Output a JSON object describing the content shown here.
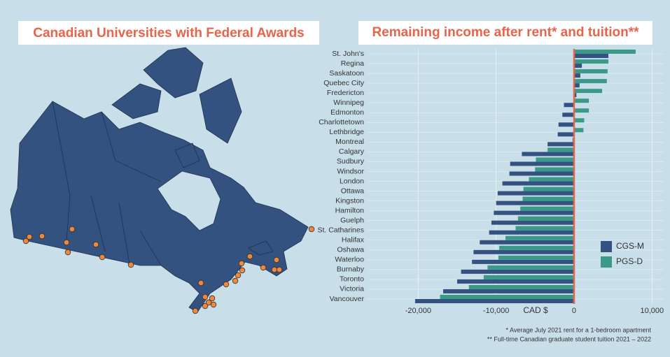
{
  "map": {
    "title": "Canadian Universities with Federal Awards"
  },
  "chart_data": {
    "type": "bar",
    "orientation": "horizontal",
    "title": "Remaining income after rent* and tuition**",
    "xlabel": "CAD $",
    "notes": [
      "* Average July 2021 rent for a 1-bedroom apartment",
      "** Full-time Canadian graduate student tuition 2021 – 2022"
    ],
    "categories": [
      "St. John's",
      "Regina",
      "Saskatoon",
      "Quebec City",
      "Fredericton",
      "Winnipeg",
      "Edmonton",
      "Charlottetown",
      "Lethbridge",
      "Montreal",
      "Calgary",
      "Sudbury",
      "Windsor",
      "London",
      "Ottawa",
      "Kingston",
      "Hamilton",
      "Guelph",
      "St. Catharines",
      "Halifax",
      "Oshawa",
      "Waterloo",
      "Burnaby",
      "Toronto",
      "Victoria",
      "Vancouver"
    ],
    "series": [
      {
        "name": "CGS-M",
        "color": "#34527f",
        "values": [
          4400,
          1000,
          800,
          700,
          300,
          -1300,
          -1500,
          -2000,
          -2100,
          -3400,
          -6700,
          -8200,
          -8300,
          -9200,
          -9800,
          -10000,
          -10300,
          -10600,
          -10900,
          -12100,
          -12900,
          -13100,
          -14500,
          -15000,
          -16800,
          -20400
        ]
      },
      {
        "name": "PGS-D",
        "color": "#3a9a87",
        "values": [
          7900,
          4400,
          4300,
          4200,
          3600,
          1900,
          1900,
          1300,
          1200,
          -200,
          -3400,
          -4900,
          -5000,
          -5800,
          -6500,
          -6600,
          -6900,
          -7200,
          -7500,
          -8800,
          -9600,
          -9700,
          -11100,
          -11600,
          -13500,
          -17200
        ]
      }
    ],
    "xlim": [
      -26500,
      11500
    ],
    "xticks": [
      {
        "value": -20000,
        "label": "-20,000"
      },
      {
        "value": -10000,
        "label": "-10,000"
      },
      0,
      {
        "value": 10000,
        "label": "10,000"
      }
    ],
    "grid": true,
    "zeroline_color": "#e8644a",
    "legend": "lower right"
  }
}
